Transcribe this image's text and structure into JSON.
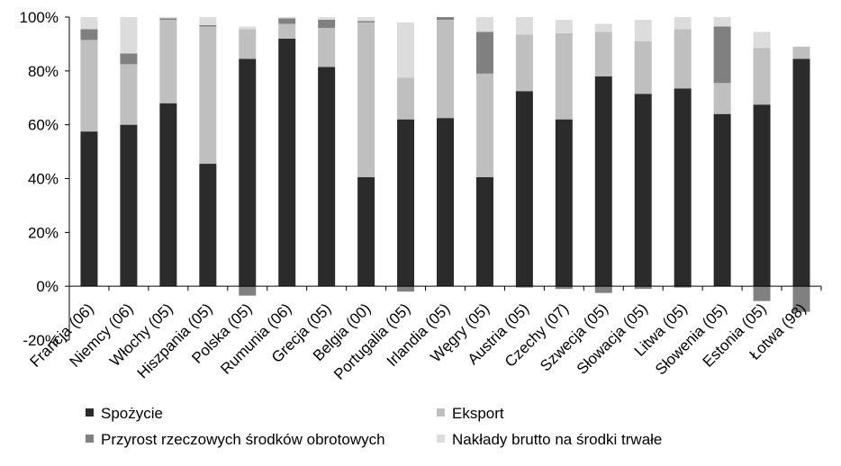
{
  "chart_data": {
    "type": "bar",
    "stacked": true,
    "categories": [
      "Francja (06)",
      "Niemcy (06)",
      "Włochy (05)",
      "Hiszpania (05)",
      "Polska (05)",
      "Rumunia (06)",
      "Grecja (05)",
      "Belgia (00)",
      "Portugalia (05)",
      "Irlandia (05)",
      "Węgry (05)",
      "Austria (05)",
      "Czechy (07)",
      "Szwecja (05)",
      "Słowacja (05)",
      "Litwa (05)",
      "Słowenia (05)",
      "Estonia (05)",
      "Łotwa (98)"
    ],
    "series": [
      {
        "name": "Spożycie",
        "color": "#2b2b2b",
        "values": [
          57.5,
          60,
          68,
          45.5,
          84.5,
          92,
          81.5,
          40.5,
          62,
          62.5,
          40.5,
          72.5,
          62,
          78,
          71.5,
          73.5,
          64,
          67.5,
          84.5
        ]
      },
      {
        "name": "Eksport",
        "color": "#bfbfbf",
        "values": [
          34,
          22.5,
          31,
          51,
          11,
          5.5,
          14.5,
          57.5,
          15.5,
          36.5,
          38.5,
          21,
          32,
          16.5,
          19.5,
          22,
          11.5,
          21,
          4.5
        ]
      },
      {
        "name": "Przyrost rzeczowych środków obrotowych",
        "color": "#808080",
        "values": [
          4,
          4,
          0.5,
          0.5,
          -3.5,
          2,
          3,
          0.5,
          -2,
          1,
          15.5,
          -0.5,
          -1,
          -2.5,
          -1,
          -0.5,
          21,
          -5.5,
          -9.5
        ]
      },
      {
        "name": "Nakłady brutto na środki trwałe",
        "color": "#dcdcdc",
        "values": [
          4.5,
          13.5,
          0.5,
          3,
          1,
          0.5,
          1,
          1.5,
          20.5,
          0,
          5.5,
          6.5,
          5,
          3,
          8,
          4.5,
          3.5,
          6,
          0
        ]
      }
    ],
    "ylim": [
      -20,
      100
    ],
    "yticks": [
      "-20%",
      "0%",
      "20%",
      "40%",
      "60%",
      "80%",
      "100%"
    ],
    "ytick_values": [
      -20,
      0,
      20,
      40,
      60,
      80,
      100
    ],
    "grid": false,
    "legend_position": "bottom"
  }
}
